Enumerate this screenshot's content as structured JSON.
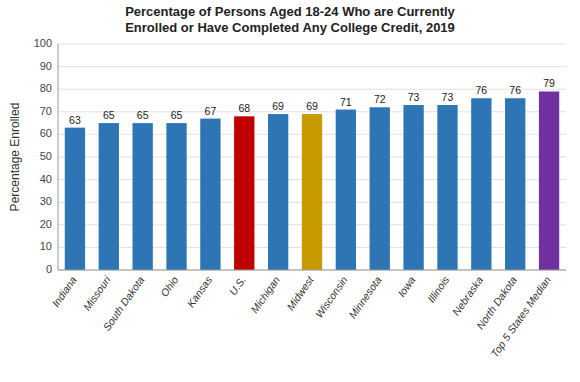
{
  "chart_data": {
    "type": "bar",
    "title": "Percentage of Persons Aged 18-24 Who are Currently\nEnrolled or Have Completed Any College Credit, 2019",
    "ylabel": "Percentage Enrolled",
    "categories": [
      "Indiana",
      "Missouri",
      "South Dakota",
      "Ohio",
      "Kansas",
      "U.S.",
      "Michigan",
      "Midwest",
      "Wisconsin",
      "Minnesota",
      "Iowa",
      "Illinois",
      "Nebraska",
      "North Dakota",
      "Top 5 States Median"
    ],
    "values": [
      63,
      65,
      65,
      65,
      67,
      68,
      69,
      69,
      71,
      72,
      73,
      73,
      76,
      76,
      79
    ],
    "colors": [
      "#2E75B6",
      "#2E75B6",
      "#2E75B6",
      "#2E75B6",
      "#2E75B6",
      "#C00000",
      "#2E75B6",
      "#C69A00",
      "#2E75B6",
      "#2E75B6",
      "#2E75B6",
      "#2E75B6",
      "#2E75B6",
      "#2E75B6",
      "#7030A0"
    ],
    "ylim": [
      0,
      100
    ],
    "yticks": [
      0,
      10,
      20,
      30,
      40,
      50,
      60,
      70,
      80,
      90,
      100
    ],
    "grid": true,
    "data_labels": true
  }
}
